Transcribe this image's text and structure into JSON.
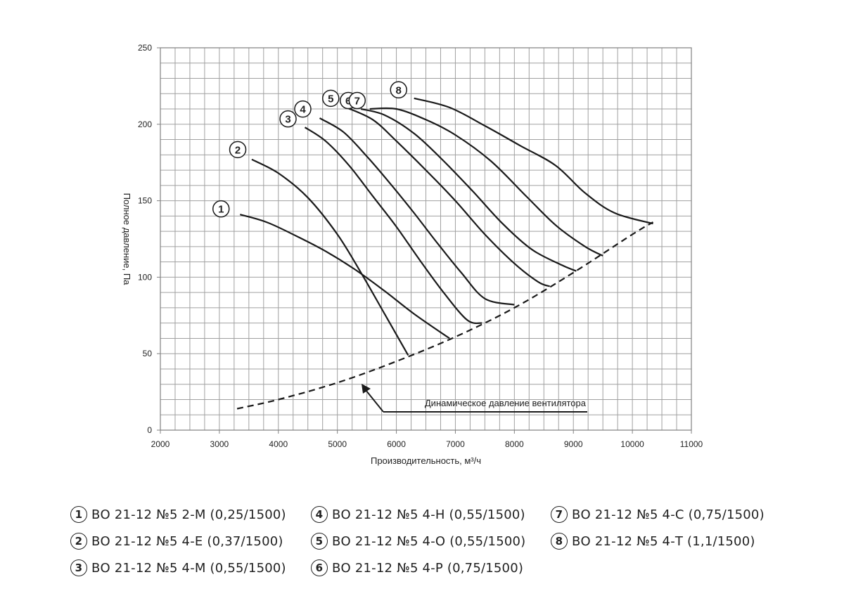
{
  "chart_data": {
    "type": "line",
    "xlabel": "Производительность, м³/ч",
    "ylabel": "Полное давление, Па",
    "xlim": [
      2000,
      11000
    ],
    "ylim": [
      0,
      250
    ],
    "x_ticks": [
      2000,
      3000,
      4000,
      5000,
      6000,
      7000,
      8000,
      9000,
      10000,
      11000
    ],
    "y_ticks": [
      0,
      50,
      100,
      150,
      200,
      250
    ],
    "grid": true,
    "series": [
      {
        "name": "1",
        "x": [
          3350,
          3800,
          4300,
          4800,
          5300,
          5800,
          6300,
          6900
        ],
        "values": [
          141,
          136,
          127,
          117,
          105,
          91,
          76,
          60
        ]
      },
      {
        "name": "2",
        "x": [
          3550,
          4000,
          4500,
          5000,
          5400,
          5800,
          6200
        ],
        "values": [
          177,
          168,
          152,
          128,
          103,
          76,
          49
        ]
      },
      {
        "name": "3",
        "x": [
          4450,
          4800,
          5200,
          5600,
          6000,
          6400,
          6800,
          7200,
          7450
        ],
        "values": [
          198,
          189,
          173,
          153,
          133,
          111,
          90,
          72,
          70
        ]
      },
      {
        "name": "4",
        "x": [
          4700,
          5100,
          5500,
          5900,
          6300,
          6700,
          7100,
          7500,
          8000
        ],
        "values": [
          204,
          195,
          179,
          161,
          142,
          122,
          103,
          86,
          82
        ]
      },
      {
        "name": "5",
        "x": [
          5150,
          5600,
          6000,
          6500,
          7000,
          7500,
          8000,
          8400,
          8600
        ],
        "values": [
          211,
          203,
          189,
          170,
          150,
          128,
          109,
          97,
          94
        ]
      },
      {
        "name": "6",
        "x": [
          5400,
          5800,
          6300,
          6800,
          7300,
          7800,
          8300,
          8800,
          9050
        ],
        "values": [
          210,
          206,
          194,
          176,
          156,
          135,
          118,
          108,
          104
        ]
      },
      {
        "name": "7",
        "x": [
          5550,
          6000,
          6500,
          7000,
          7600,
          8200,
          8700,
          9200,
          9500
        ],
        "values": [
          210,
          210,
          203,
          193,
          176,
          153,
          134,
          120,
          114
        ]
      },
      {
        "name": "8",
        "x": [
          6300,
          6900,
          7500,
          8100,
          8700,
          9200,
          9700,
          10350
        ],
        "values": [
          217,
          211,
          199,
          186,
          173,
          155,
          142,
          135
        ]
      }
    ],
    "dynamic_pressure": {
      "label": "Динамическое давление вентилятора",
      "x": [
        3300,
        4000,
        5000,
        6000,
        7000,
        8000,
        9000,
        10000,
        10350
      ],
      "values": [
        14,
        20,
        31,
        45,
        61,
        80,
        103,
        128,
        136
      ]
    },
    "curve_labels": [
      "1",
      "2",
      "3",
      "4",
      "5",
      "6",
      "7",
      "8"
    ]
  },
  "legend": [
    {
      "num": "1",
      "text": "ВО 21-12 №5 2-М (0,25/1500)"
    },
    {
      "num": "2",
      "text": "ВО 21-12 №5 4-Е (0,37/1500)"
    },
    {
      "num": "3",
      "text": "ВО 21-12 №5 4-М (0,55/1500)"
    },
    {
      "num": "4",
      "text": "ВО 21-12 №5 4-Н (0,55/1500)"
    },
    {
      "num": "5",
      "text": "ВО 21-12 №5 4-О (0,55/1500)"
    },
    {
      "num": "6",
      "text": "ВО 21-12 №5 4-Р (0,75/1500)"
    },
    {
      "num": "7",
      "text": "ВО 21-12 №5 4-С (0,75/1500)"
    },
    {
      "num": "8",
      "text": "ВО 21-12 №5 4-Т (1,1/1500)"
    }
  ],
  "colors": {
    "line": "#1a1a1a",
    "grid": "#a0a0a0",
    "axis": "#808080"
  }
}
